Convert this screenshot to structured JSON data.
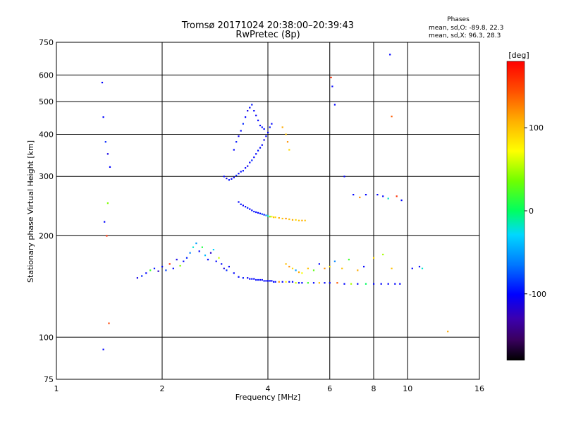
{
  "header": {
    "title_line1": "Tromsø 20171024 20:38:00–20:39:43",
    "title_line2": "RwPretec (8p)"
  },
  "stats": {
    "heading": "Phases",
    "line_o": "mean, sd,O: -89.8, 22.3",
    "line_x": "mean, sd,X:  96.3, 28.3"
  },
  "chart_data": {
    "type": "scatter",
    "title": "Tromsø 20171024 20:38:00–20:39:43",
    "subtitle": "RwPretec (8p)",
    "xlabel": "Frequency [MHz]",
    "ylabel": "Stationary phase Virtual Height [km]",
    "xscale": "log",
    "yscale": "log",
    "xlim": [
      1,
      16
    ],
    "ylim": [
      75,
      750
    ],
    "xticks": [
      1,
      2,
      4,
      6,
      8,
      10,
      16
    ],
    "yticks": [
      75,
      100,
      200,
      300,
      400,
      500,
      600,
      750
    ],
    "grid": true,
    "colorbar": {
      "label": "[deg]",
      "range": [
        -180,
        180
      ],
      "ticks": [
        100,
        0,
        -100
      ]
    },
    "series": [
      {
        "x": [
          3.3,
          3.4,
          3.5,
          3.55,
          3.6,
          3.65,
          3.7,
          3.75,
          3.8,
          3.85,
          3.9,
          3.95,
          4.0,
          4.05,
          4.1,
          4.15,
          4.2,
          4.3,
          4.4,
          4.5,
          4.6,
          4.7,
          4.8,
          4.9,
          5.0,
          5.2,
          5.4,
          5.6,
          5.8,
          6.0,
          6.3,
          6.6,
          6.9,
          7.2,
          7.6,
          8.0,
          8.4,
          8.8,
          9.2,
          9.5
        ],
        "y": [
          151,
          150,
          150,
          149,
          149,
          149,
          148,
          148,
          148,
          148,
          147,
          147,
          147,
          147,
          147,
          146,
          146,
          146,
          146,
          146,
          146,
          146,
          145,
          145,
          145,
          145,
          145,
          145,
          145,
          145,
          145,
          144,
          144,
          144,
          144,
          144,
          144,
          144,
          144,
          144
        ],
        "phase": [
          -100,
          -95,
          -105,
          -100,
          -98,
          -102,
          -100,
          -96,
          -104,
          -100,
          -99,
          -101,
          -100,
          -97,
          -103,
          -100,
          -98,
          120,
          -100,
          80,
          -100,
          -100,
          60,
          -100,
          -100,
          20,
          -100,
          100,
          -100,
          -100,
          140,
          -100,
          50,
          -100,
          0,
          -100,
          -100,
          -100,
          -100,
          -100
        ]
      },
      {
        "x": [
          1.7,
          1.75,
          1.8,
          1.85,
          1.9,
          1.95,
          2.0,
          2.05,
          2.1,
          2.15,
          2.2,
          2.25,
          2.3,
          2.35,
          2.4,
          2.45,
          2.5,
          2.55,
          2.6,
          2.65,
          2.7,
          2.75,
          2.8,
          2.85,
          2.9,
          2.95,
          3.0,
          3.05,
          3.1,
          3.2
        ],
        "y": [
          150,
          152,
          155,
          158,
          160,
          157,
          162,
          158,
          165,
          160,
          170,
          163,
          168,
          172,
          178,
          185,
          190,
          180,
          185,
          175,
          170,
          178,
          182,
          168,
          172,
          165,
          160,
          158,
          162,
          155
        ],
        "phase": [
          -110,
          -90,
          -100,
          20,
          -95,
          -120,
          -100,
          -80,
          160,
          -100,
          -110,
          40,
          -100,
          -90,
          -60,
          -20,
          -50,
          -100,
          10,
          -40,
          -100,
          -120,
          -30,
          -100,
          60,
          -100,
          -110,
          -90,
          -100,
          -100
        ]
      },
      {
        "x": [
          3.3,
          3.35,
          3.4,
          3.45,
          3.5,
          3.55,
          3.6,
          3.65,
          3.7,
          3.75,
          3.8,
          3.85,
          3.9,
          3.95,
          4.0,
          4.05,
          4.1,
          4.15,
          4.2,
          4.3,
          4.4,
          4.5,
          4.6,
          4.7,
          4.8,
          4.9,
          5.0,
          5.1
        ],
        "y": [
          252,
          248,
          246,
          244,
          242,
          240,
          238,
          236,
          235,
          234,
          233,
          232,
          231,
          230,
          229,
          228,
          228,
          227,
          227,
          226,
          225,
          225,
          224,
          223,
          223,
          222,
          222,
          222
        ],
        "phase": [
          -100,
          -95,
          -105,
          -100,
          -90,
          -100,
          -100,
          -95,
          -100,
          -100,
          -100,
          -80,
          -100,
          -60,
          -20,
          40,
          80,
          100,
          90,
          110,
          100,
          120,
          100,
          110,
          90,
          100,
          110,
          100
        ]
      },
      {
        "x": [
          3.0,
          3.05,
          3.1,
          3.15,
          3.2,
          3.25,
          3.3,
          3.35,
          3.4,
          3.45,
          3.5,
          3.55,
          3.6,
          3.65,
          3.7,
          3.75,
          3.8,
          3.85,
          3.9,
          3.95,
          4.0,
          4.05,
          4.1
        ],
        "y": [
          300,
          296,
          293,
          295,
          298,
          302,
          306,
          310,
          312,
          318,
          322,
          330,
          335,
          342,
          350,
          358,
          365,
          372,
          385,
          395,
          405,
          420,
          430
        ],
        "phase": [
          -100,
          -110,
          -95,
          -100,
          -105,
          -90,
          -100,
          -100,
          -95,
          -100,
          -110,
          -100,
          -90,
          -100,
          -100,
          -95,
          -100,
          -100,
          -105,
          -100,
          -100,
          -95,
          -100
        ]
      },
      {
        "x": [
          3.2,
          3.25,
          3.3,
          3.35,
          3.4,
          3.45,
          3.5,
          3.55,
          3.6,
          3.65,
          3.7,
          3.75,
          3.8,
          3.85,
          3.9,
          4.4,
          4.5,
          4.55,
          4.6
        ],
        "y": [
          360,
          380,
          395,
          410,
          430,
          450,
          470,
          480,
          490,
          470,
          455,
          440,
          425,
          420,
          415,
          420,
          400,
          380,
          360
        ],
        "phase": [
          -100,
          -95,
          -105,
          -100,
          -90,
          -100,
          -110,
          -100,
          -95,
          -100,
          -105,
          -100,
          -100,
          -95,
          -100,
          110,
          100,
          120,
          90
        ]
      },
      {
        "x": [
          1.35,
          1.36,
          1.38,
          1.4,
          1.42,
          1.4,
          1.37,
          1.39,
          1.41,
          1.36
        ],
        "y": [
          570,
          450,
          380,
          350,
          320,
          250,
          220,
          200,
          110,
          92
        ],
        "phase": [
          -100,
          -100,
          -90,
          -110,
          -100,
          40,
          -100,
          160,
          150,
          -100
        ]
      },
      {
        "x": [
          6.05,
          6.1,
          6.2,
          6.6,
          7.0,
          7.3,
          7.6,
          8.2,
          8.5,
          8.8,
          8.9,
          9.0,
          9.3,
          9.6,
          10.3,
          10.8,
          11.0,
          13.0
        ],
        "y": [
          590,
          555,
          490,
          300,
          265,
          260,
          265,
          265,
          262,
          258,
          690,
          452,
          262,
          255,
          160,
          162,
          160,
          104
        ],
        "phase": [
          160,
          -100,
          -100,
          -100,
          -100,
          120,
          -100,
          -100,
          -100,
          -20,
          -100,
          140,
          160,
          -100,
          -100,
          -100,
          -20,
          110
        ]
      },
      {
        "x": [
          4.5,
          4.6,
          4.7,
          4.8,
          4.9,
          5.0,
          5.2,
          5.4,
          5.6,
          5.8,
          6.0,
          6.2,
          6.5,
          6.8,
          7.2,
          7.5,
          8.0,
          8.5,
          9.0
        ],
        "y": [
          165,
          162,
          160,
          158,
          156,
          155,
          160,
          158,
          165,
          160,
          162,
          168,
          160,
          170,
          158,
          162,
          172,
          176,
          160
        ],
        "phase": [
          100,
          120,
          90,
          -50,
          110,
          70,
          100,
          30,
          -100,
          120,
          80,
          -60,
          100,
          20,
          110,
          -100,
          90,
          50,
          100
        ]
      }
    ]
  }
}
